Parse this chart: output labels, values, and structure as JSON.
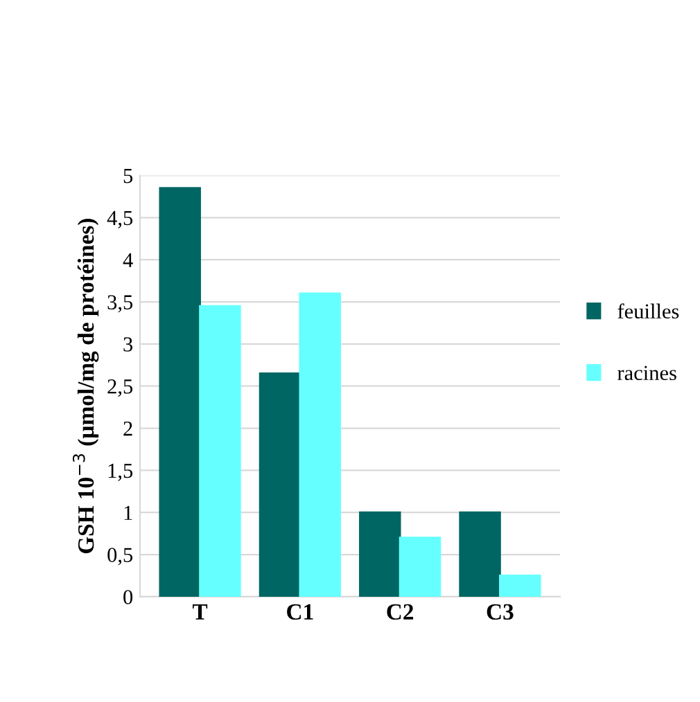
{
  "chart_data": {
    "type": "bar",
    "ylabel": "GSH 10$^{−3}$ (µmol/mg de protéines)",
    "categories": [
      "T",
      "C1",
      "C2",
      "C3"
    ],
    "series": [
      {
        "name": "feuilles",
        "color": "#006663",
        "values": [
          4.85,
          2.65,
          1.0,
          1.0
        ]
      },
      {
        "name": "racines",
        "color": "#66ffff",
        "values": [
          3.45,
          3.6,
          0.7,
          0.25
        ]
      }
    ],
    "ylim": [
      0,
      5
    ],
    "yticks": [
      0,
      {
        "value": 0.5,
        "label": "0,5"
      },
      1,
      {
        "value": 1.5,
        "label": "1,5"
      },
      2,
      {
        "value": 2.5,
        "label": "2,5"
      },
      3,
      {
        "value": 3.5,
        "label": "3,5"
      },
      4,
      {
        "value": 4.5,
        "label": "4,5"
      },
      5
    ],
    "grid": "y",
    "legend": "right"
  }
}
